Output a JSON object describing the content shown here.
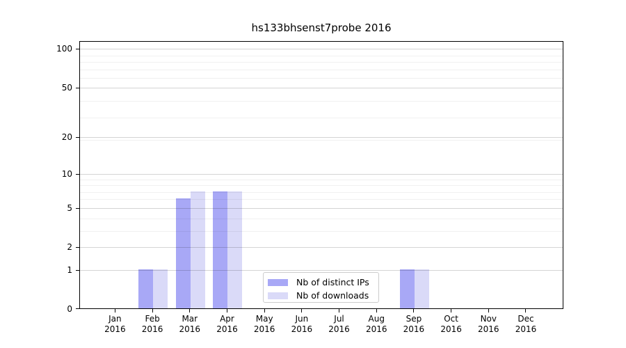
{
  "chart_data": {
    "type": "bar",
    "title": "hs133bhsenst7probe 2016",
    "x_categories": [
      "Jan",
      "Feb",
      "Mar",
      "Apr",
      "May",
      "Jun",
      "Jul",
      "Aug",
      "Sep",
      "Oct",
      "Nov",
      "Dec"
    ],
    "x_year_label": "2016",
    "series": [
      {
        "name": "Nb of distinct IPs",
        "color": "#a8a8f6",
        "values": [
          0,
          1,
          6,
          7,
          0,
          0,
          0,
          0,
          1,
          0,
          0,
          0
        ]
      },
      {
        "name": "Nb of downloads",
        "color": "#dadaf8",
        "values": [
          0,
          1,
          7,
          7,
          0,
          0,
          0,
          0,
          1,
          0,
          0,
          0
        ]
      }
    ],
    "y_axis": {
      "scale": "log1p",
      "ticks": [
        0,
        1,
        2,
        5,
        10,
        20,
        50,
        100
      ],
      "minor_ticks": [
        3,
        4,
        6,
        7,
        8,
        9,
        19,
        29,
        39,
        59,
        69,
        79,
        89
      ],
      "ylim": [
        0,
        115
      ],
      "grid": true
    },
    "legend": {
      "position": "lower-center",
      "entries": [
        "Nb of distinct IPs",
        "Nb of downloads"
      ]
    },
    "colors": {
      "major_grid": "#d4d4d4",
      "minor_grid": "#f0f0f0",
      "spine": "#000000",
      "text": "#000000",
      "background": "#ffffff"
    }
  }
}
